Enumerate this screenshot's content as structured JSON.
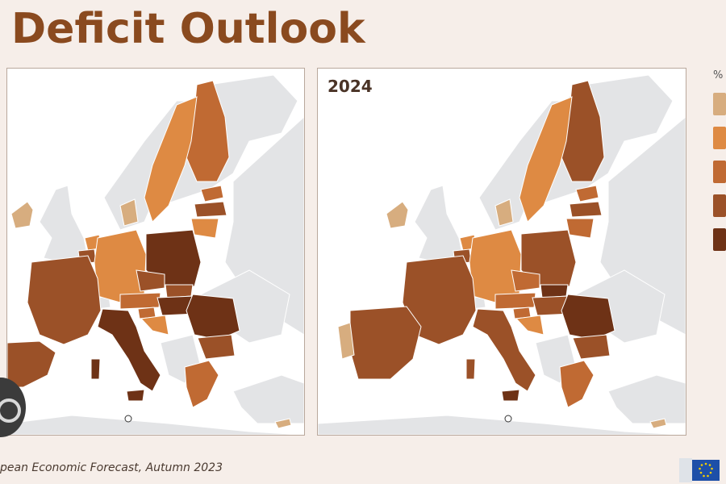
{
  "title": "Deficit Outlook",
  "maps": [
    {
      "year": ""
    },
    {
      "year": "2024"
    }
  ],
  "legend": {
    "unit": "%",
    "items": [
      {
        "label": "",
        "color": "#d7ad7f"
      },
      {
        "label": "",
        "color": "#de8a43"
      },
      {
        "label": "",
        "color": "#c06a33"
      },
      {
        "label": "",
        "color": "#9b5128"
      },
      {
        "label": "",
        "color": "#6e3216"
      }
    ]
  },
  "footer": "pean Economic Forecast, Autumn 2023",
  "colors": {
    "background": "#f6eee9",
    "title": "#8a4a1f",
    "non_eu_land": "#e3e4e6",
    "sea": "#ffffff"
  },
  "icons": [
    "user-avatar-icon",
    "eu-flag-icon"
  ]
}
